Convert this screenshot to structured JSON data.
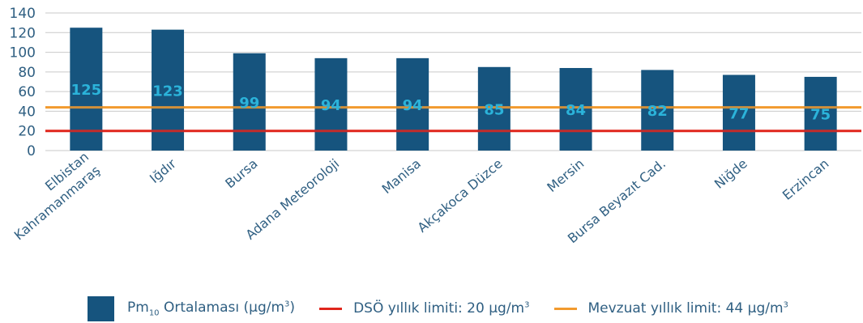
{
  "chart_data": {
    "type": "bar",
    "categories": [
      [
        "Elbistan",
        "Kahramanmaraş"
      ],
      [
        "Iğdır"
      ],
      [
        "Bursa"
      ],
      [
        "Adana Meteoroloji"
      ],
      [
        "Manisa"
      ],
      [
        "Akçakoca Düzce"
      ],
      [
        "Mersin"
      ],
      [
        "Bursa Beyazıt Cad."
      ],
      [
        "Niğde"
      ],
      [
        "Erzincan"
      ]
    ],
    "series": [
      {
        "name": "Pm10 Ortalaması (µg/m3)",
        "values": [
          125,
          123,
          99,
          94,
          94,
          85,
          84,
          82,
          77,
          75
        ],
        "color": "#16547e"
      }
    ],
    "reference_lines": [
      {
        "name": "DSÖ yıllık limiti: 20 µg/m3",
        "value": 20,
        "color": "#e0261c"
      },
      {
        "name": "Mevzuat yıllık limit: 44 µg/m3",
        "value": 44,
        "color": "#f29a2e"
      }
    ],
    "data_label_color": "#2bb3da",
    "ylim": [
      0,
      140
    ],
    "yticks": [
      0,
      20,
      40,
      60,
      80,
      100,
      120,
      140
    ],
    "grid": true,
    "legend_position": "bottom"
  },
  "legend": {
    "bar": {
      "prefix": "Pm",
      "sub": "10",
      "mid": " Ortalaması (µg/m",
      "sup": "3",
      "suffix": ")"
    },
    "who": {
      "text": "DSÖ yıllık limiti: 20 µg/m",
      "sup": "3"
    },
    "reg": {
      "text": "Mevzuat yıllık limit: 44 µg/m",
      "sup": "3"
    }
  }
}
